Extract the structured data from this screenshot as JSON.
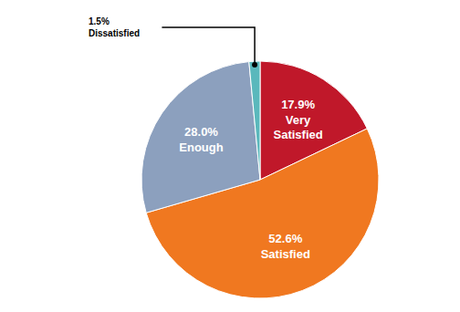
{
  "chart_data": {
    "type": "pie",
    "categories": [
      "Very\nSatisfied",
      "Satisfied",
      "Enough",
      "Dissatisfied"
    ],
    "values": [
      17.9,
      52.6,
      28.0,
      1.5
    ],
    "value_labels": [
      "17.9%",
      "52.6%",
      "28.0%",
      "1.5%"
    ],
    "colors": [
      "#c0182a",
      "#f07820",
      "#8ca0be",
      "#5ab8bc"
    ],
    "data_labels": true
  }
}
